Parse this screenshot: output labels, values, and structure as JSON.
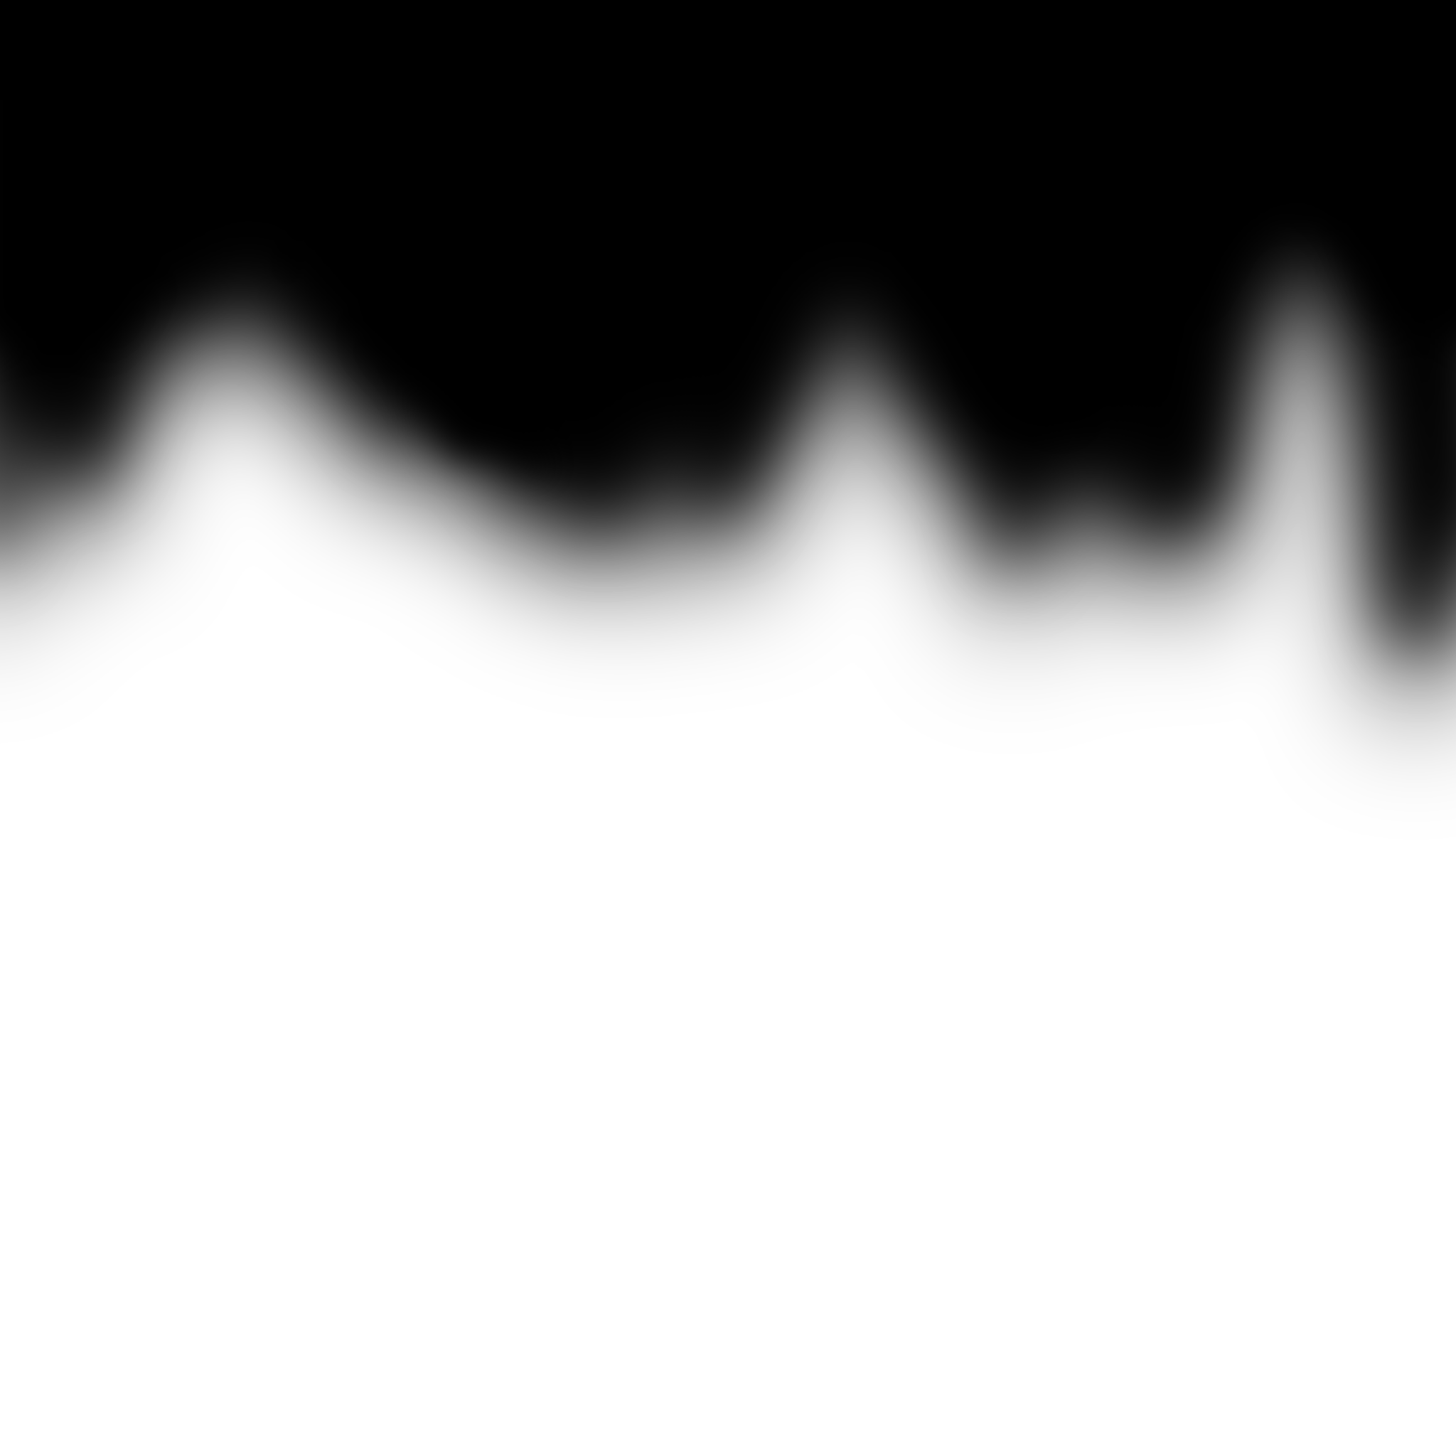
{
  "image": {
    "subject": "gradient-mask",
    "colors": {
      "background": "#ffffff",
      "shape": "#000000"
    }
  }
}
